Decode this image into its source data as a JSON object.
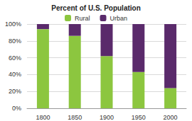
{
  "chart_data": {
    "type": "bar",
    "title": "Percent of U.S. Population",
    "categories": [
      "1800",
      "1850",
      "1900",
      "1950",
      "2000"
    ],
    "series": [
      {
        "name": "Rural",
        "color": "#8cc63f",
        "values": [
          94,
          86,
          62,
          43,
          24
        ]
      },
      {
        "name": "Urban",
        "color": "#5a2a6b",
        "values": [
          6,
          14,
          38,
          57,
          76
        ]
      }
    ],
    "stacked": true,
    "ylim": [
      0,
      100
    ],
    "yticks": [
      {
        "value": 0,
        "label": "0%"
      },
      {
        "value": 20,
        "label": "20%"
      },
      {
        "value": 40,
        "label": "40%"
      },
      {
        "value": 60,
        "label": "60%"
      },
      {
        "value": 80,
        "label": "80%"
      },
      {
        "value": 100,
        "label": "100%"
      }
    ],
    "grid": true,
    "legend": "top"
  }
}
